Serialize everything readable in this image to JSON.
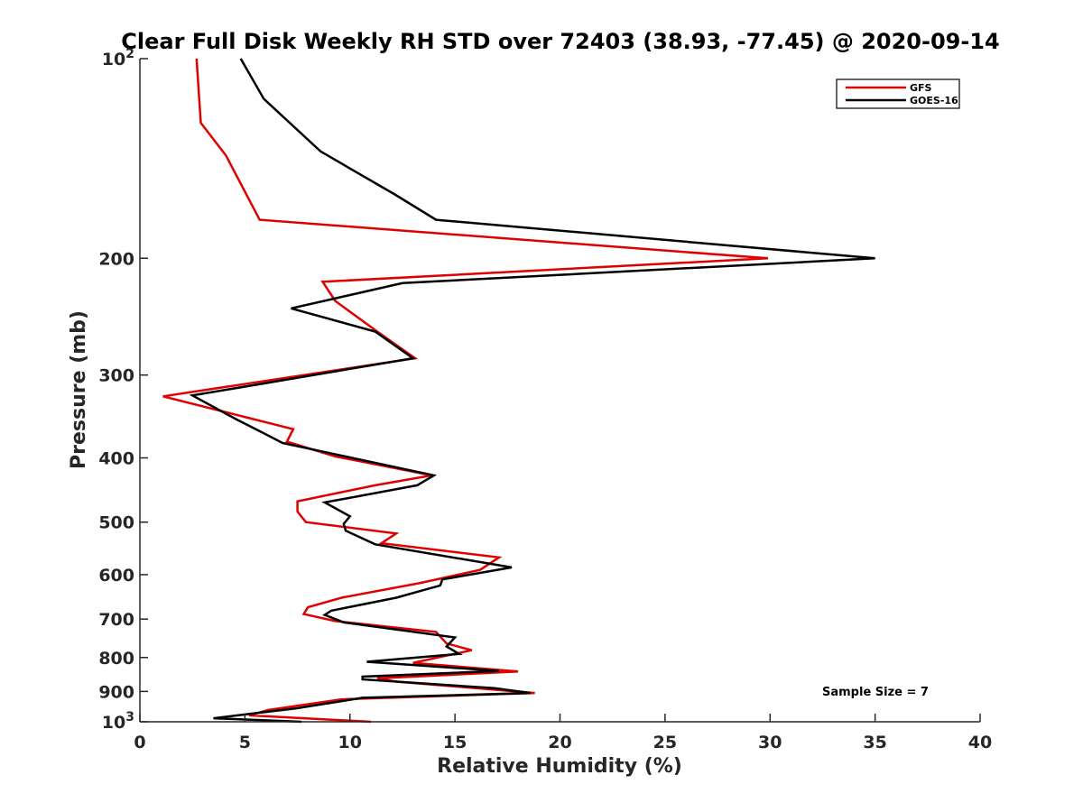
{
  "chart_data": {
    "type": "line",
    "title": "Clear Full Disk Weekly RH STD over 72403 (38.93, -77.45) @ 2020-09-14",
    "xlabel": "Relative Humidity (%)",
    "ylabel": "Pressure (mb)",
    "xlim": [
      0,
      40
    ],
    "ylim": [
      100,
      1000
    ],
    "y_scale": "log",
    "y_reversed": true,
    "x_ticks": [
      "0",
      "5",
      "10",
      "15",
      "20",
      "25",
      "30",
      "35",
      "40"
    ],
    "y_ticks": [
      {
        "value": 100,
        "base": "10",
        "exp": "2"
      },
      {
        "value": 200,
        "label": "200"
      },
      {
        "value": 300,
        "label": "300"
      },
      {
        "value": 400,
        "label": "400"
      },
      {
        "value": 500,
        "label": "500"
      },
      {
        "value": 600,
        "label": "600"
      },
      {
        "value": 700,
        "label": "700"
      },
      {
        "value": 800,
        "label": "800"
      },
      {
        "value": 900,
        "label": "900"
      },
      {
        "value": 1000,
        "base": "10",
        "exp": "3"
      }
    ],
    "legend_position": "top-right",
    "grid": false,
    "annotation": "Sample Size = 7",
    "series": [
      {
        "name": "GFS",
        "color": "#e00000",
        "points": [
          [
            2.7,
            100
          ],
          [
            2.9,
            125
          ],
          [
            4.1,
            140
          ],
          [
            5.7,
            175
          ],
          [
            29.9,
            200
          ],
          [
            8.7,
            217
          ],
          [
            9.3,
            232
          ],
          [
            11.3,
            258
          ],
          [
            13.1,
            283
          ],
          [
            1.1,
            323
          ],
          [
            7.3,
            362
          ],
          [
            7.0,
            378
          ],
          [
            9.3,
            398
          ],
          [
            13.9,
            425
          ],
          [
            11.2,
            440
          ],
          [
            7.5,
            465
          ],
          [
            7.5,
            482
          ],
          [
            7.9,
            500
          ],
          [
            12.2,
            520
          ],
          [
            11.5,
            538
          ],
          [
            17.1,
            565
          ],
          [
            16.2,
            590
          ],
          [
            13.3,
            618
          ],
          [
            9.6,
            650
          ],
          [
            8.0,
            672
          ],
          [
            7.8,
            688
          ],
          [
            9.3,
            705
          ],
          [
            14.1,
            732
          ],
          [
            14.6,
            762
          ],
          [
            15.8,
            780
          ],
          [
            13.0,
            815
          ],
          [
            18.0,
            840
          ],
          [
            11.3,
            860
          ],
          [
            12.2,
            870
          ],
          [
            18.8,
            905
          ],
          [
            9.6,
            925
          ],
          [
            6.1,
            960
          ],
          [
            5.2,
            978
          ],
          [
            11.0,
            1000
          ]
        ]
      },
      {
        "name": "GOES-16",
        "color": "#000000",
        "points": [
          [
            4.8,
            100
          ],
          [
            5.9,
            115
          ],
          [
            8.6,
            138
          ],
          [
            12.1,
            160
          ],
          [
            14.1,
            175
          ],
          [
            35.0,
            200
          ],
          [
            12.5,
            218
          ],
          [
            7.2,
            238
          ],
          [
            11.2,
            258
          ],
          [
            13.0,
            283
          ],
          [
            2.5,
            322
          ],
          [
            4.6,
            350
          ],
          [
            6.1,
            370
          ],
          [
            6.8,
            380
          ],
          [
            14.0,
            425
          ],
          [
            13.2,
            440
          ],
          [
            8.8,
            467
          ],
          [
            10.0,
            490
          ],
          [
            9.7,
            503
          ],
          [
            9.8,
            515
          ],
          [
            11.2,
            540
          ],
          [
            17.7,
            585
          ],
          [
            14.4,
            610
          ],
          [
            14.3,
            623
          ],
          [
            12.2,
            650
          ],
          [
            9.1,
            680
          ],
          [
            8.8,
            690
          ],
          [
            9.7,
            708
          ],
          [
            15.0,
            746
          ],
          [
            14.6,
            770
          ],
          [
            15.2,
            790
          ],
          [
            10.8,
            812
          ],
          [
            17.1,
            838
          ],
          [
            10.6,
            855
          ],
          [
            10.6,
            863
          ],
          [
            16.9,
            890
          ],
          [
            18.6,
            905
          ],
          [
            10.6,
            920
          ],
          [
            7.4,
            955
          ],
          [
            5.0,
            975
          ],
          [
            3.5,
            988
          ],
          [
            7.7,
            1000
          ]
        ]
      }
    ]
  }
}
